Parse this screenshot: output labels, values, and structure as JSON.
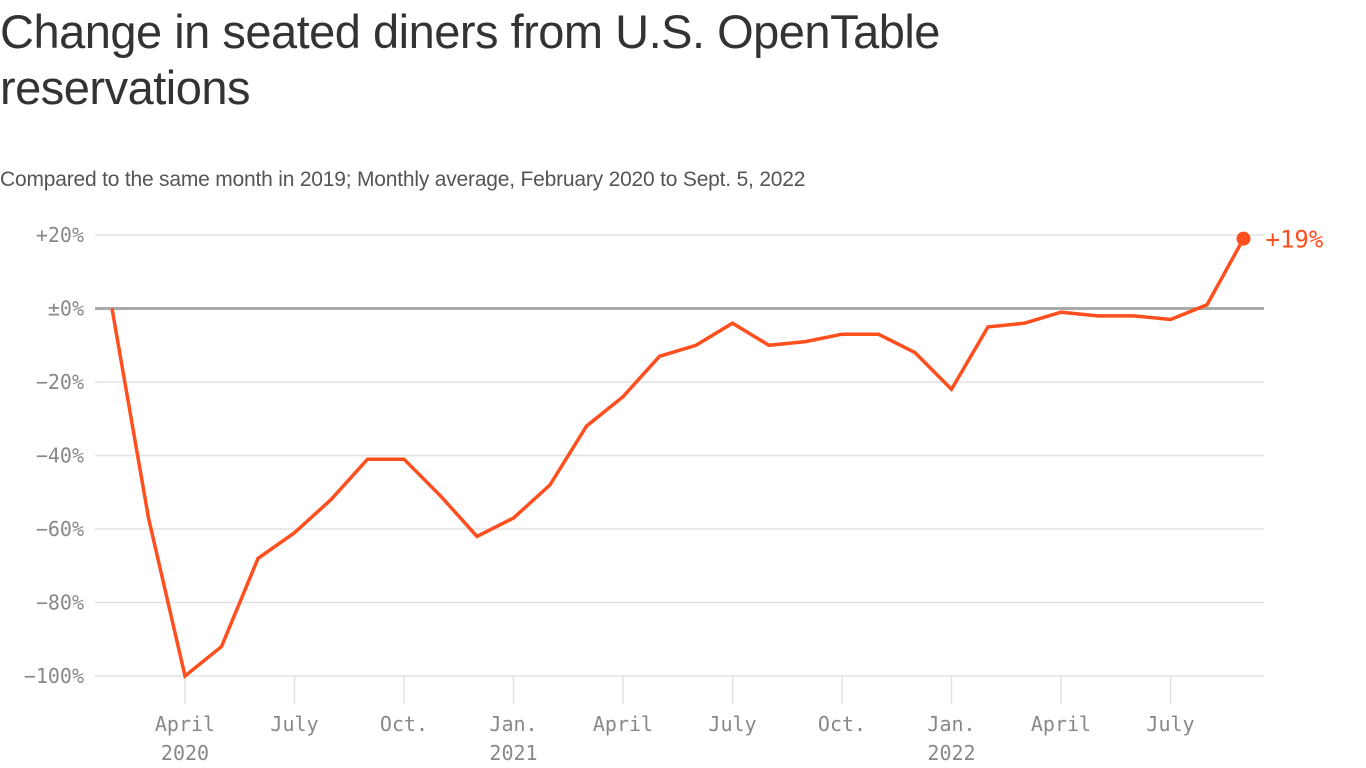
{
  "chart_data": {
    "type": "line",
    "title": "Change in seated diners from U.S. OpenTable reservations",
    "subtitle": "Compared to the same month in 2019; Monthly average, February 2020 to Sept. 5, 2022",
    "xlabel": "",
    "ylabel": "",
    "ylim": [
      -100,
      20
    ],
    "grid": true,
    "y_ticks": [
      {
        "value": 20,
        "label": "+20%"
      },
      {
        "value": 0,
        "label": "±0%"
      },
      {
        "value": -20,
        "label": "−20%"
      },
      {
        "value": -40,
        "label": "−40%"
      },
      {
        "value": -60,
        "label": "−60%"
      },
      {
        "value": -80,
        "label": "−80%"
      },
      {
        "value": -100,
        "label": "−100%"
      }
    ],
    "x_ticks": [
      {
        "index": 2,
        "label": "April",
        "sublabel": "2020"
      },
      {
        "index": 5,
        "label": "July",
        "sublabel": ""
      },
      {
        "index": 8,
        "label": "Oct.",
        "sublabel": ""
      },
      {
        "index": 11,
        "label": "Jan.",
        "sublabel": "2021"
      },
      {
        "index": 14,
        "label": "April",
        "sublabel": ""
      },
      {
        "index": 17,
        "label": "July",
        "sublabel": ""
      },
      {
        "index": 20,
        "label": "Oct.",
        "sublabel": ""
      },
      {
        "index": 23,
        "label": "Jan.",
        "sublabel": "2022"
      },
      {
        "index": 26,
        "label": "April",
        "sublabel": ""
      },
      {
        "index": 29,
        "label": "July",
        "sublabel": ""
      }
    ],
    "x": [
      "Feb 2020",
      "Mar 2020",
      "Apr 2020",
      "May 2020",
      "Jun 2020",
      "Jul 2020",
      "Aug 2020",
      "Sep 2020",
      "Oct 2020",
      "Nov 2020",
      "Dec 2020",
      "Jan 2021",
      "Feb 2021",
      "Mar 2021",
      "Apr 2021",
      "May 2021",
      "Jun 2021",
      "Jul 2021",
      "Aug 2021",
      "Sep 2021",
      "Oct 2021",
      "Nov 2021",
      "Dec 2021",
      "Jan 2022",
      "Feb 2022",
      "Mar 2022",
      "Apr 2022",
      "May 2022",
      "Jun 2022",
      "Jul 2022",
      "Aug 2022",
      "Sep 2022"
    ],
    "series": [
      {
        "name": "Change in seated diners",
        "color": "#ff4f1f",
        "values": [
          0,
          -57,
          -100,
          -92,
          -68,
          -61,
          -52,
          -41,
          -41,
          -51,
          -62,
          -57,
          -48,
          -32,
          -24,
          -13,
          -10,
          -4,
          -10,
          -9,
          -7,
          -7,
          -12,
          -22,
          -5,
          -4,
          -1,
          -2,
          -2,
          -3,
          1,
          19
        ]
      }
    ],
    "annotations": [
      {
        "point_index": 31,
        "label": "+19%"
      }
    ],
    "colors": {
      "line": "#ff4f1f",
      "grid": "#e2e2e2",
      "zero_line": "#aaaaaa",
      "tick_text": "#888888"
    }
  }
}
